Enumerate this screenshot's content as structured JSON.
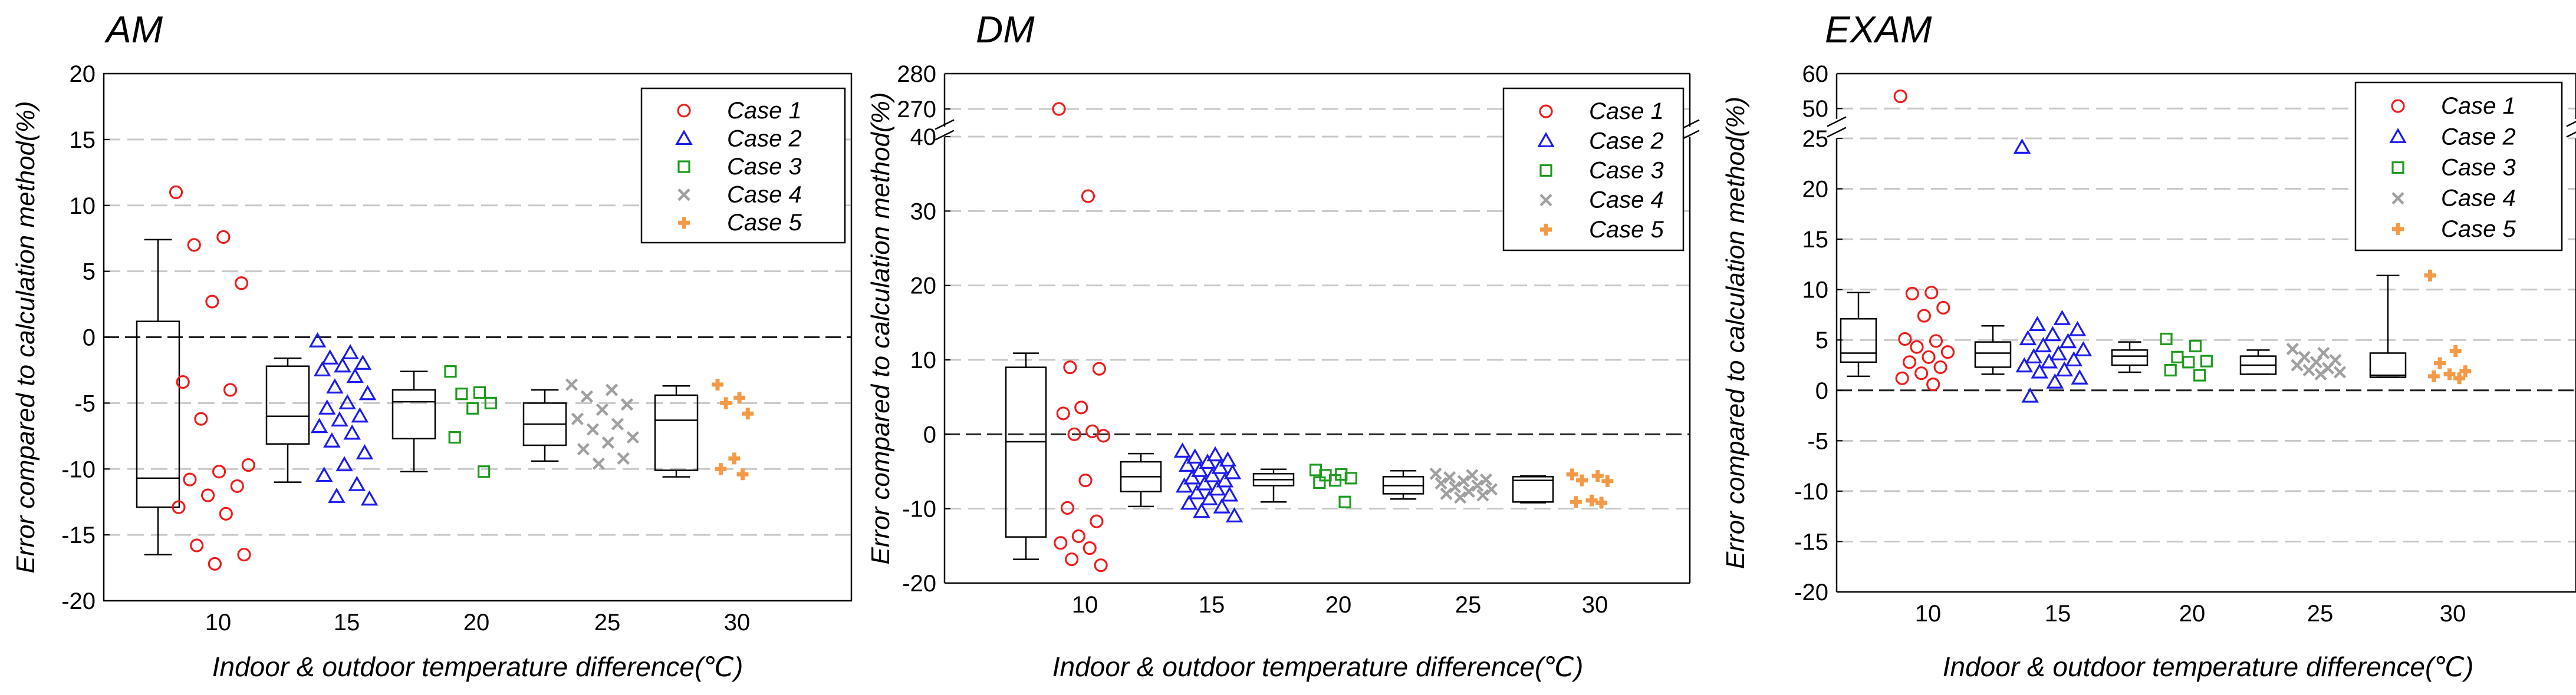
{
  "chart_data": [
    {
      "type": "box-scatter",
      "title": "AM",
      "ylabel": "Error compared to calculation method(%)",
      "xlabel": "Indoor & outdoor temperature difference(℃)",
      "ylim": [
        -20,
        20
      ],
      "yticks": [
        "20",
        "15",
        "10",
        "5",
        "0",
        "-5",
        "-10",
        "-15",
        "-20"
      ],
      "ytick_values": [
        20,
        15,
        10,
        5,
        0,
        -5,
        -10,
        -15,
        -20
      ],
      "categories": [
        "10",
        "15",
        "20",
        "25",
        "30"
      ],
      "legend": [
        "Case 1",
        "Case 2",
        "Case 3",
        "Case 4",
        "Case 5"
      ],
      "boxes": [
        {
          "category": "10",
          "whisker_low": -16.5,
          "q1": -12.9,
          "median": -10.7,
          "q3": 1.2,
          "whisker_high": 7.4
        },
        {
          "category": "15",
          "whisker_low": -11,
          "q1": -8.1,
          "median": -6,
          "q3": -2.2,
          "whisker_high": -1.6
        },
        {
          "category": "20",
          "whisker_low": -10.2,
          "q1": -7.7,
          "median": -4.9,
          "q3": -4,
          "whisker_high": -2.6
        },
        {
          "category": "25",
          "whisker_low": -9.4,
          "q1": -8.2,
          "median": -6.6,
          "q3": -5,
          "whisker_high": -4
        },
        {
          "category": "30",
          "whisker_low": -10.6,
          "q1": -10.1,
          "median": -6.3,
          "q3": -4.4,
          "whisker_high": -3.7
        }
      ],
      "series": [
        {
          "name": "Case 1",
          "category": "10",
          "values": [
            11,
            7.6,
            7,
            4.1,
            2.7,
            -3.4,
            -4,
            -6.2,
            -9.7,
            -10.2,
            -10.8,
            -11.3,
            -12,
            -12.9,
            -13.4,
            -15.8,
            -16.5,
            -17.2
          ]
        },
        {
          "name": "Case 2",
          "category": "15",
          "values": [
            -0.3,
            -1.2,
            -1.6,
            -2,
            -2.2,
            -2.5,
            -3,
            -3.8,
            -4.3,
            -5,
            -5.4,
            -6,
            -6.3,
            -6.8,
            -7.3,
            -7.9,
            -8.8,
            -9.7,
            -10.5,
            -11.2,
            -12.1,
            -12.3
          ]
        },
        {
          "name": "Case 3",
          "category": "20",
          "values": [
            -2.6,
            -4.2,
            -4.3,
            -5,
            -5.4,
            -7.6,
            -10.2
          ]
        },
        {
          "name": "Case 4",
          "category": "25",
          "values": [
            -3.6,
            -4,
            -4.5,
            -5.1,
            -5.5,
            -6.2,
            -6.6,
            -7,
            -7.6,
            -8,
            -8.5,
            -9.2,
            -9.6
          ]
        },
        {
          "name": "Case 5",
          "category": "30",
          "values": [
            -3.6,
            -4.6,
            -5,
            -5.8,
            -9.2,
            -10,
            -10.4
          ]
        }
      ]
    },
    {
      "type": "box-scatter",
      "title": "DM",
      "ylabel": "Error compared to calculation method(%)",
      "xlabel": "Indoor & outdoor temperature difference(℃)",
      "ylim": [
        -20,
        280
      ],
      "axis_break": [
        40,
        265
      ],
      "yticks": [
        "280",
        "270",
        "40",
        "30",
        "20",
        "10",
        "0",
        "-10",
        "-20"
      ],
      "ytick_values": [
        280,
        270,
        40,
        30,
        20,
        10,
        0,
        -10,
        -20
      ],
      "categories": [
        "10",
        "15",
        "20",
        "25",
        "30"
      ],
      "legend": [
        "Case 1",
        "Case 2",
        "Case 3",
        "Case 4",
        "Case 5"
      ],
      "boxes": [
        {
          "category": "10",
          "whisker_low": -16.8,
          "q1": -13.8,
          "median": -1,
          "q3": 9,
          "whisker_high": 10.9
        },
        {
          "category": "15",
          "whisker_low": -9.7,
          "q1": -7.7,
          "median": -5.7,
          "q3": -3.7,
          "whisker_high": -2.6
        },
        {
          "category": "20",
          "whisker_low": -9.1,
          "q1": -6.9,
          "median": -6.1,
          "q3": -5.3,
          "whisker_high": -4.7
        },
        {
          "category": "25",
          "whisker_low": -8.7,
          "q1": -8,
          "median": -6.9,
          "q3": -5.7,
          "whisker_high": -4.9
        },
        {
          "category": "30",
          "whisker_low": -9.2,
          "q1": -9.1,
          "median": -6.2,
          "q3": -5.7,
          "whisker_high": -5.6
        }
      ],
      "series": [
        {
          "name": "Case 1",
          "category": "10",
          "values": [
            270,
            32,
            9,
            8.8,
            3.6,
            2.8,
            0.4,
            0,
            -0.2,
            -6.2,
            -9.9,
            -11.7,
            -13.7,
            -14.6,
            -15.3,
            -16.8,
            -17.6
          ]
        },
        {
          "name": "Case 2",
          "category": "15",
          "values": [
            -2.3,
            -2.8,
            -3.1,
            -3.5,
            -3.8,
            -4.2,
            -4.5,
            -4.9,
            -5.2,
            -5.6,
            -5.9,
            -6.3,
            -6.7,
            -7,
            -7.4,
            -7.9,
            -8.2,
            -8.7,
            -9.3,
            -9.8,
            -10.4,
            -11
          ]
        },
        {
          "name": "Case 3",
          "category": "20",
          "values": [
            -4.8,
            -5.4,
            -5.5,
            -5.9,
            -6.2,
            -6.5,
            -9.1
          ]
        },
        {
          "name": "Case 4",
          "category": "25",
          "values": [
            -5.3,
            -5.5,
            -5.8,
            -6.1,
            -6.3,
            -6.6,
            -6.9,
            -7.1,
            -7.4,
            -7.7,
            -8,
            -8.2,
            -8.5
          ]
        },
        {
          "name": "Case 5",
          "category": "30",
          "values": [
            -5.4,
            -5.6,
            -6.2,
            -6.3,
            -8.9,
            -9.1,
            -9.2
          ]
        }
      ]
    },
    {
      "type": "box-scatter",
      "title": "EXAM",
      "ylabel": "Error compared to calculation method(%)",
      "xlabel": "Indoor & outdoor temperature difference(℃)",
      "ylim": [
        -20,
        60
      ],
      "axis_break": [
        25,
        47
      ],
      "yticks": [
        "60",
        "50",
        "25",
        "20",
        "15",
        "10",
        "5",
        "0",
        "-5",
        "-10",
        "-15",
        "-20"
      ],
      "ytick_values": [
        60,
        50,
        25,
        20,
        15,
        10,
        5,
        0,
        -5,
        -10,
        -15,
        -20
      ],
      "categories": [
        "10",
        "15",
        "20",
        "25",
        "30"
      ],
      "legend": [
        "Case 1",
        "Case 2",
        "Case 3",
        "Case 4",
        "Case 5"
      ],
      "boxes": [
        {
          "category": "10",
          "whisker_low": 1.4,
          "q1": 2.8,
          "median": 3.7,
          "q3": 7.1,
          "whisker_high": 9.7
        },
        {
          "category": "15",
          "whisker_low": 1.6,
          "q1": 2.3,
          "median": 3.7,
          "q3": 4.8,
          "whisker_high": 6.4
        },
        {
          "category": "20",
          "whisker_low": 1.8,
          "q1": 2.5,
          "median": 3.4,
          "q3": 4,
          "whisker_high": 4.8
        },
        {
          "category": "25",
          "whisker_low": 1.6,
          "q1": 1.6,
          "median": 2.5,
          "q3": 3.4,
          "whisker_high": 4
        },
        {
          "category": "30",
          "whisker_low": 1.3,
          "q1": 1.3,
          "median": 1.5,
          "q3": 3.7,
          "whisker_high": 11.4
        }
      ],
      "series": [
        {
          "name": "Case 1",
          "category": "10",
          "values": [
            53.5,
            9.7,
            9.6,
            8.2,
            7.4,
            5.1,
            4.9,
            4.3,
            3.8,
            3.3,
            2.8,
            2.3,
            1.7,
            1.2,
            0.6
          ]
        },
        {
          "name": "Case 2",
          "category": "15",
          "values": [
            24.1,
            7.1,
            6.5,
            6,
            5.5,
            5.1,
            4.8,
            4.4,
            4,
            3.6,
            3.3,
            3,
            2.8,
            2.4,
            2,
            1.8,
            1.2,
            0.8,
            -0.6
          ]
        },
        {
          "name": "Case 3",
          "category": "20",
          "values": [
            5.1,
            4.4,
            3.3,
            2.9,
            2.8,
            2,
            1.5
          ]
        },
        {
          "name": "Case 4",
          "category": "25",
          "values": [
            4.1,
            3.7,
            3.3,
            3,
            2.8,
            2.5,
            2.2,
            2,
            1.8,
            1.6
          ]
        },
        {
          "name": "Case 5",
          "category": "30",
          "values": [
            11.4,
            3.9,
            2.7,
            1.9,
            1.6,
            1.4,
            1.2
          ]
        }
      ]
    }
  ],
  "series_colors": {
    "Case 1": "#ef1c1c",
    "Case 2": "#1c1cef",
    "Case 3": "#1d9b1d",
    "Case 4": "#a0a0a0",
    "Case 5": "#f49a46"
  },
  "series_markers": {
    "Case 1": "circle",
    "Case 2": "triangle",
    "Case 3": "square",
    "Case 4": "x",
    "Case 5": "plus"
  }
}
